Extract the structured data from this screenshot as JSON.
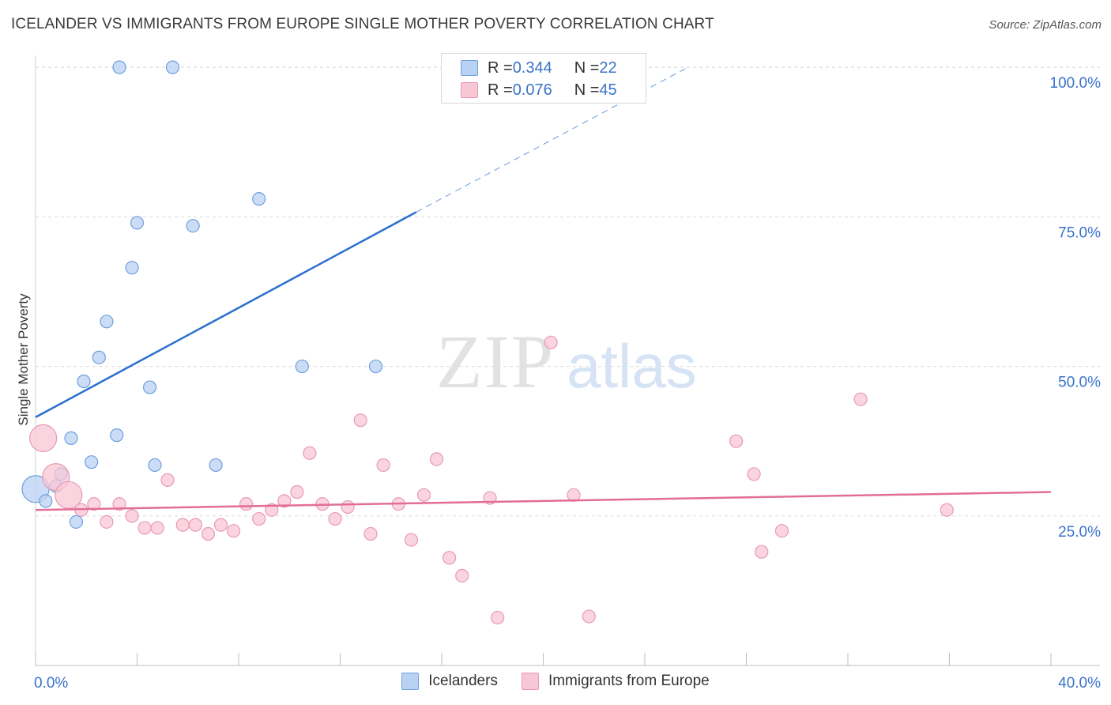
{
  "title": "ICELANDER VS IMMIGRANTS FROM EUROPE SINGLE MOTHER POVERTY CORRELATION CHART",
  "source": "Source: ZipAtlas.com",
  "watermark": {
    "zip": "ZIP",
    "atlas": "atlas"
  },
  "colors": {
    "blue_fill": "#b9d2f3",
    "blue_stroke": "#6f9fdc",
    "blue_line": "#2a6fcf",
    "pink_fill": "#f8c7d6",
    "pink_stroke": "#e89ab3",
    "pink_line": "#e26d97",
    "tick_text": "#3a73c9",
    "grid": "#d9d9d9"
  },
  "legend": {
    "rows": [
      {
        "r_label": "R = ",
        "r_value": "0.344",
        "n_label": "N = ",
        "n_value": "22",
        "swatch": "#b9d2f3"
      },
      {
        "r_label": "R = ",
        "r_value": "0.076",
        "n_label": "N = ",
        "n_value": "45",
        "swatch": "#f8c7d6"
      }
    ]
  },
  "chart_data": {
    "type": "scatter",
    "title": "ICELANDER VS IMMIGRANTS FROM EUROPE SINGLE MOTHER POVERTY CORRELATION CHART",
    "xlabel": "",
    "ylabel": "Single Mother Poverty",
    "xlim": [
      0,
      40
    ],
    "ylim": [
      0,
      102
    ],
    "x_ticks": [
      0,
      4,
      8,
      12,
      16,
      20,
      24,
      28,
      32,
      36,
      40
    ],
    "x_tick_labels": [
      {
        "value": 0,
        "label": "0.0%"
      },
      {
        "value": 40,
        "label": "40.0%"
      }
    ],
    "y_ticks": [
      {
        "value": 25,
        "label": "25.0%"
      },
      {
        "value": 50,
        "label": "50.0%"
      },
      {
        "value": 75,
        "label": "75.0%"
      },
      {
        "value": 100,
        "label": "100.0%"
      }
    ],
    "grid": true,
    "legend_position": "top-center",
    "series": [
      {
        "name": "Icelanders",
        "color": "#b9d2f3",
        "points": [
          {
            "x": 3.3,
            "y": 100
          },
          {
            "x": 5.4,
            "y": 100
          },
          {
            "x": 8.8,
            "y": 78
          },
          {
            "x": 4.0,
            "y": 74
          },
          {
            "x": 6.2,
            "y": 73.5
          },
          {
            "x": 3.8,
            "y": 66.5
          },
          {
            "x": 2.8,
            "y": 57.5
          },
          {
            "x": 2.5,
            "y": 51.5
          },
          {
            "x": 1.9,
            "y": 47.5
          },
          {
            "x": 4.5,
            "y": 46.5
          },
          {
            "x": 10.5,
            "y": 50
          },
          {
            "x": 13.4,
            "y": 50
          },
          {
            "x": 3.2,
            "y": 38.5
          },
          {
            "x": 1.4,
            "y": 38
          },
          {
            "x": 2.2,
            "y": 34
          },
          {
            "x": 4.7,
            "y": 33.5
          },
          {
            "x": 7.1,
            "y": 33.5
          },
          {
            "x": 1.0,
            "y": 32
          },
          {
            "x": 0.8,
            "y": 30
          },
          {
            "x": 0.0,
            "y": 29.5,
            "large": true
          },
          {
            "x": 0.4,
            "y": 27.5
          },
          {
            "x": 1.6,
            "y": 24
          }
        ],
        "trend": {
          "x": [
            0,
            15
          ],
          "y": [
            41.5,
            75.8
          ],
          "dashed_to": {
            "x": 25.7,
            "y": 100
          }
        }
      },
      {
        "name": "Immigrants from Europe",
        "color": "#f8c7d6",
        "points": [
          {
            "x": 0.3,
            "y": 38,
            "large": true
          },
          {
            "x": 0.8,
            "y": 31.5,
            "large": true
          },
          {
            "x": 1.3,
            "y": 28.5,
            "large": true
          },
          {
            "x": 1.8,
            "y": 26
          },
          {
            "x": 2.3,
            "y": 27
          },
          {
            "x": 2.8,
            "y": 24
          },
          {
            "x": 3.3,
            "y": 27
          },
          {
            "x": 3.8,
            "y": 25
          },
          {
            "x": 4.3,
            "y": 23
          },
          {
            "x": 4.8,
            "y": 23
          },
          {
            "x": 5.2,
            "y": 31
          },
          {
            "x": 5.8,
            "y": 23.5
          },
          {
            "x": 6.3,
            "y": 23.5
          },
          {
            "x": 6.8,
            "y": 22
          },
          {
            "x": 7.3,
            "y": 23.5
          },
          {
            "x": 7.8,
            "y": 22.5
          },
          {
            "x": 8.3,
            "y": 27
          },
          {
            "x": 8.8,
            "y": 24.5
          },
          {
            "x": 9.3,
            "y": 26
          },
          {
            "x": 9.8,
            "y": 27.5
          },
          {
            "x": 10.3,
            "y": 29
          },
          {
            "x": 10.8,
            "y": 35.5
          },
          {
            "x": 11.3,
            "y": 27
          },
          {
            "x": 11.8,
            "y": 24.5
          },
          {
            "x": 12.3,
            "y": 26.5
          },
          {
            "x": 12.8,
            "y": 41
          },
          {
            "x": 13.2,
            "y": 22
          },
          {
            "x": 13.7,
            "y": 33.5
          },
          {
            "x": 14.3,
            "y": 27
          },
          {
            "x": 14.8,
            "y": 21
          },
          {
            "x": 15.3,
            "y": 28.5
          },
          {
            "x": 15.8,
            "y": 34.5
          },
          {
            "x": 16.3,
            "y": 18
          },
          {
            "x": 16.8,
            "y": 15
          },
          {
            "x": 17.9,
            "y": 28
          },
          {
            "x": 18.2,
            "y": 8
          },
          {
            "x": 20.3,
            "y": 54
          },
          {
            "x": 21.2,
            "y": 28.5
          },
          {
            "x": 21.8,
            "y": 8.2
          },
          {
            "x": 27.6,
            "y": 37.5
          },
          {
            "x": 28.3,
            "y": 32
          },
          {
            "x": 28.6,
            "y": 19
          },
          {
            "x": 29.4,
            "y": 22.5
          },
          {
            "x": 32.5,
            "y": 44.5
          },
          {
            "x": 35.9,
            "y": 26
          }
        ],
        "trend": {
          "x": [
            0,
            40
          ],
          "y": [
            26,
            29
          ]
        }
      }
    ]
  }
}
